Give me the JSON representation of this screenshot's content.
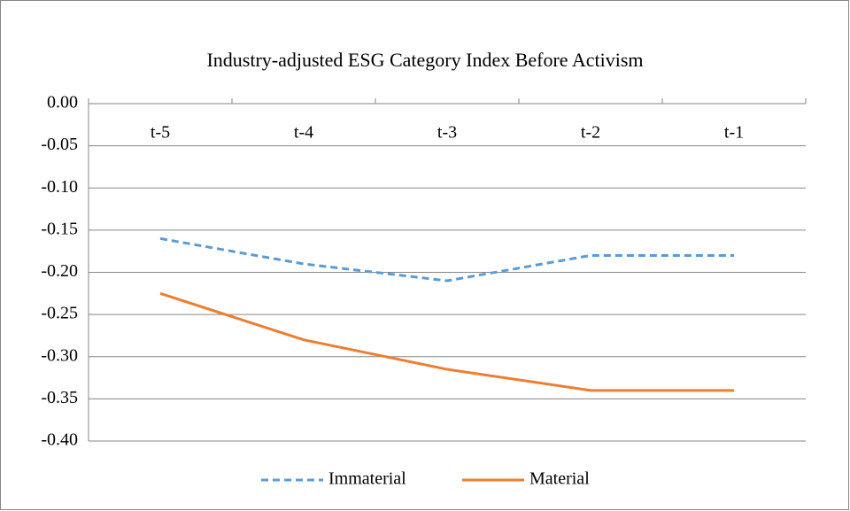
{
  "chart_data": {
    "type": "line",
    "title": "Industry-adjusted ESG Category Index Before Activism",
    "categories": [
      "t-5",
      "t-4",
      "t-3",
      "t-2",
      "t-1"
    ],
    "series": [
      {
        "name": "Immaterial",
        "color": "#5b9bd5",
        "line_style": "dashed",
        "values": [
          -0.16,
          -0.19,
          -0.21,
          -0.18,
          -0.18
        ]
      },
      {
        "name": "Material",
        "color": "#ed7d31",
        "line_style": "solid",
        "values": [
          -0.225,
          -0.28,
          -0.315,
          -0.34,
          -0.34
        ]
      }
    ],
    "ylim": [
      -0.4,
      0
    ],
    "yticks": [
      {
        "value": 0,
        "label": "0.00"
      },
      {
        "value": -0.05,
        "label": "-0.05"
      },
      {
        "value": -0.1,
        "label": "-0.10"
      },
      {
        "value": -0.15,
        "label": "-0.15"
      },
      {
        "value": -0.2,
        "label": "-0.20"
      },
      {
        "value": -0.25,
        "label": "-0.25"
      },
      {
        "value": -0.3,
        "label": "-0.30"
      },
      {
        "value": -0.35,
        "label": "-0.35"
      },
      {
        "value": -0.4,
        "label": "-0.40"
      }
    ],
    "grid": true,
    "legend": "bottom"
  }
}
